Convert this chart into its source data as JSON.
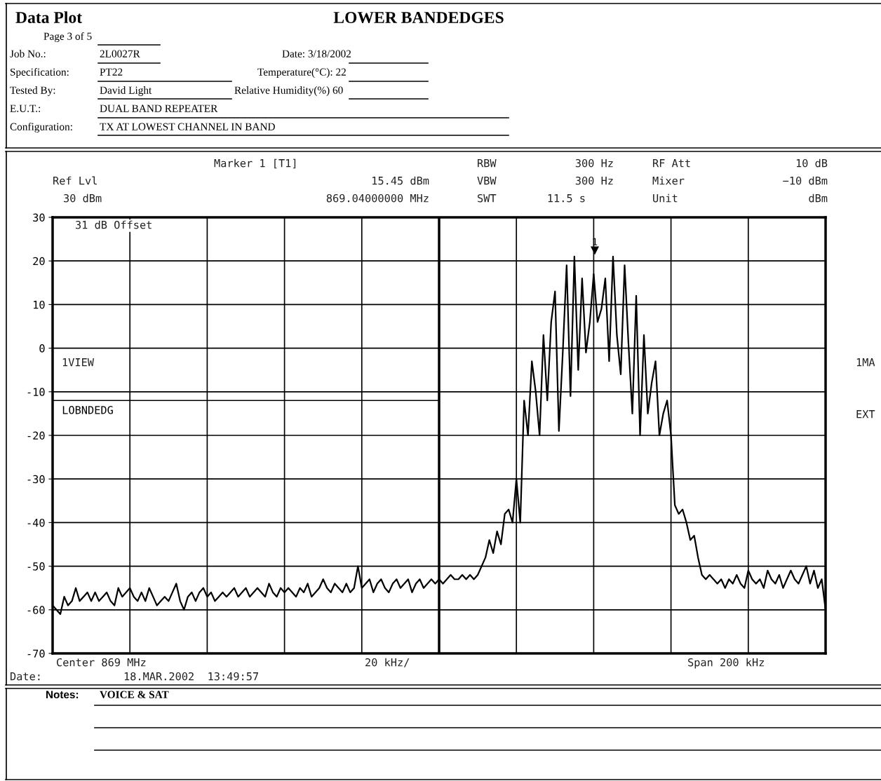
{
  "chart_data": {
    "type": "line",
    "title": "LOWER BANDEDGES",
    "categories": [
      null,
      null,
      null,
      null,
      null,
      null,
      null,
      null,
      null,
      null,
      null,
      null,
      null,
      null,
      null,
      null,
      null,
      null,
      null,
      null,
      null,
      null,
      null,
      null,
      null,
      null,
      null,
      null,
      null,
      null,
      null,
      null,
      null,
      null,
      null,
      null,
      null,
      null,
      null,
      null,
      null,
      null,
      null,
      null,
      null,
      null,
      null,
      null,
      null,
      null,
      null,
      null,
      null,
      null,
      null,
      null,
      null,
      null,
      null,
      null,
      null,
      null,
      null,
      null,
      null,
      null,
      null,
      null,
      null,
      null,
      null,
      null,
      null,
      null,
      null,
      null,
      null,
      null,
      null,
      null,
      null,
      null,
      null,
      null,
      null,
      null,
      null,
      null,
      null,
      null,
      null,
      null,
      null,
      null,
      null,
      null,
      null,
      null,
      null,
      null,
      null,
      null,
      null,
      null,
      null,
      null,
      null,
      null,
      null,
      null,
      null,
      null,
      null,
      null,
      null,
      null,
      null,
      null,
      null,
      null,
      null,
      null,
      null,
      null,
      null,
      null,
      null,
      null,
      null,
      null,
      null,
      null,
      null,
      null,
      null,
      null,
      null,
      null,
      null,
      null,
      null,
      null,
      null,
      null,
      null,
      null,
      null,
      null,
      null,
      null,
      null,
      null,
      null,
      null,
      null,
      null,
      null,
      null,
      null,
      null,
      null,
      null,
      null,
      null,
      null,
      null,
      null,
      null,
      null,
      null,
      null,
      null,
      null,
      null,
      null,
      null,
      null,
      null,
      null,
      null,
      null,
      null,
      null,
      null,
      null,
      null,
      null,
      null,
      null,
      null,
      null,
      null,
      null,
      null,
      null,
      null,
      null,
      null,
      null,
      null,
      null
    ],
    "ylim": [
      -70,
      30
    ],
    "yticks": [
      -70,
      -60,
      -50,
      -40,
      -30,
      -20,
      -10,
      0,
      10,
      20,
      30
    ],
    "tick_labels": "y",
    "grid": true,
    "marker": "none",
    "line_style": "solid",
    "series": [
      {
        "color": "#000000",
        "values": [
          -59,
          -60,
          -61,
          -57,
          -59,
          -58,
          -55,
          -58,
          -57,
          -56,
          -58,
          -56,
          -58,
          -57,
          -56,
          -58,
          -59,
          -55,
          -57,
          -56,
          -55,
          -57,
          -58,
          -56,
          -58,
          -55,
          -57,
          -59,
          -58,
          -57,
          -58,
          -56,
          -54,
          -58,
          -60,
          -57,
          -56,
          -58,
          -56,
          -55,
          -57,
          -56,
          -58,
          -57,
          -56,
          -57,
          -56,
          -55,
          -57,
          -56,
          -55,
          -57,
          -56,
          -55,
          -56,
          -57,
          -54,
          -56,
          -57,
          -55,
          -56,
          -55,
          -56,
          -57,
          -55,
          -56,
          -54,
          -57,
          -56,
          -55,
          -53,
          -55,
          -56,
          -54,
          -55,
          -56,
          -54,
          -56,
          -55,
          -50,
          -55,
          -54,
          -53,
          -56,
          -54,
          -53,
          -55,
          -56,
          -54,
          -53,
          -55,
          -54,
          -53,
          -56,
          -54,
          -53,
          -55,
          -54,
          -53,
          -54,
          -53,
          -54,
          -53,
          -52,
          -53,
          -53,
          -52,
          -53,
          -52,
          -53,
          -52,
          -50,
          -48,
          -44,
          -47,
          -42,
          -45,
          -38,
          -37,
          -40,
          -30,
          -40,
          -12,
          -20,
          -3,
          -10,
          -20,
          3,
          -12,
          6,
          13,
          -19,
          -1,
          19,
          -11,
          21,
          -5,
          16,
          -1,
          6,
          17,
          6,
          9,
          16,
          -3,
          21,
          3,
          -6,
          19,
          1,
          -15,
          12,
          -20,
          3,
          -15,
          -8,
          -3,
          -20,
          -15,
          -12,
          -20,
          -36,
          -38,
          -37,
          -40,
          -44,
          -43,
          -48,
          -52,
          -53,
          -52,
          -53,
          -54,
          -53,
          -55,
          -53,
          -54,
          -52,
          -54,
          -55,
          -51,
          -53,
          -54,
          -53,
          -55,
          -51,
          -53,
          -54,
          -52,
          -55,
          -53,
          -51,
          -53,
          -54,
          -52,
          -50,
          -54,
          -51,
          -55,
          -53,
          -60
        ]
      }
    ],
    "ref_lines": [
      {
        "axis": "y",
        "value": -12,
        "label": "LOBNDEDG",
        "color": "#000000"
      }
    ],
    "annotations": [
      "Data Plot",
      "Page 3 of 5",
      "Job No.:",
      "2L0027R",
      "Date: 3/18/2002",
      "Specification:",
      "PT22",
      "Temperature(°C): 22",
      "Tested By:",
      "David Light",
      "Relative Humidity(%) 60",
      "E.U.T.:",
      "DUAL BAND REPEATER",
      "Configuration:",
      "TX AT LOWEST CHANNEL IN BAND",
      "Marker 1 [T1]",
      "15.45 dBm",
      "869.04000000 MHz",
      "Ref Lvl",
      "30 dBm",
      "RBW",
      "300 Hz",
      "VBW",
      "300 Hz",
      "SWT",
      "11.5 s",
      "RF Att",
      "10 dB",
      "Mixer",
      "−10 dBm",
      "Unit",
      "dBm",
      "31 dB Offset",
      "1VIEW",
      "1MA",
      "EXT",
      "Center 869 MHz",
      "20 kHz/",
      "Span 200 kHz",
      "Date:",
      "18.MAR.2002  13:49:57",
      "Notes:",
      "VOICE & SAT",
      "1"
    ]
  }
}
